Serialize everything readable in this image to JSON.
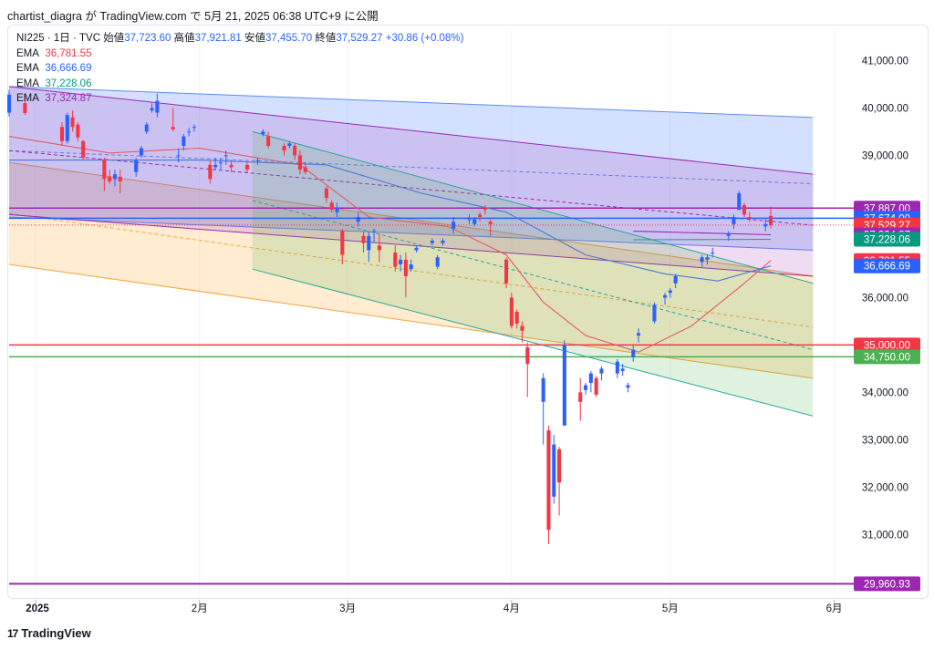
{
  "header": {
    "text": "chartist_diagra が TradingView.com で 5月 21, 2025 06:38 UTC+9 に公開"
  },
  "legend": {
    "symbol": "NI225 · 1日 · TVC",
    "open_label": "始値",
    "open": "37,723.60",
    "high_label": "高値",
    "high": "37,921.81",
    "low_label": "安値",
    "low": "37,455.70",
    "close_label": "終値",
    "close": "37,529.27",
    "change": "+30.86 (+0.08%)",
    "emas": [
      {
        "label": "EMA",
        "value": "36,781.55",
        "color": "#f23645"
      },
      {
        "label": "EMA",
        "value": "36,666.69",
        "color": "#2962ff"
      },
      {
        "label": "EMA",
        "value": "37,228.06",
        "color": "#089981"
      },
      {
        "label": "EMA",
        "value": "37,324.87",
        "color": "#9c27b0"
      }
    ]
  },
  "footer": {
    "brand": "TradingView",
    "logo_mark": "17"
  },
  "chart_data": {
    "type": "candlestick",
    "x_range": [
      "2024-12-27",
      "2025-06-04"
    ],
    "y_range": [
      29700,
      41700
    ],
    "y_ticks": [
      "41,000.00",
      "40,000.00",
      "39,000.00",
      "36,000.00",
      "34,000.00",
      "33,000.00",
      "32,000.00",
      "31,000.00"
    ],
    "y_tick_values": [
      41000,
      40000,
      39000,
      36000,
      34000,
      33000,
      32000,
      31000
    ],
    "x_ticks": [
      {
        "date": "2025-01-01",
        "label": "2025",
        "bold": true
      },
      {
        "date": "2025-02-01",
        "label": "2月",
        "bold": false
      },
      {
        "date": "2025-03-01",
        "label": "3月",
        "bold": false
      },
      {
        "date": "2025-04-01",
        "label": "4月",
        "bold": false
      },
      {
        "date": "2025-05-01",
        "label": "5月",
        "bold": false
      },
      {
        "date": "2025-06-01",
        "label": "6月",
        "bold": false
      }
    ],
    "price_labels": [
      {
        "value": 37887,
        "label": "37,887.00",
        "color": "#9c27b0"
      },
      {
        "value": 37674,
        "label": "37,674.00",
        "color": "#2962ff"
      },
      {
        "value": 37529.27,
        "label": "37,529.27",
        "color": "#f23645"
      },
      {
        "value": 37324.87,
        "label": "37,324.87",
        "color": "#9c27b0"
      },
      {
        "value": 37228.06,
        "label": "37,228.06",
        "color": "#089981"
      },
      {
        "value": 36781.55,
        "label": "36,781.55",
        "color": "#f23645"
      },
      {
        "value": 36666.69,
        "label": "36,666.69",
        "color": "#2962ff"
      },
      {
        "value": 35000,
        "label": "35,000.00",
        "color": "#f23645"
      },
      {
        "value": 34750,
        "label": "34,750.00",
        "color": "#4caf50"
      },
      {
        "value": 29960.93,
        "label": "29,960.93",
        "color": "#9c27b0"
      }
    ],
    "horizontal_lines": [
      {
        "value": 37887,
        "color": "#9c27b0",
        "width": 1.5
      },
      {
        "value": 37674,
        "color": "#2962ff",
        "width": 1.5
      },
      {
        "value": 37529.27,
        "color": "#f23645",
        "width": 1,
        "dash": "1,2"
      },
      {
        "value": 35000,
        "color": "#f23645",
        "width": 1.5
      },
      {
        "value": 34750,
        "color": "#4caf50",
        "width": 1.5
      },
      {
        "value": 29960.93,
        "color": "#9c27b0",
        "width": 2
      }
    ],
    "channels": [
      {
        "name": "orange",
        "fill": "rgba(255,152,0,0.18)",
        "stroke": "#f7a43a",
        "start": "2024-12-27",
        "end": "2025-05-28",
        "upper": [
          38850,
          36450
        ],
        "lower": [
          36700,
          34300
        ],
        "mid": [
          37775,
          35375
        ]
      },
      {
        "name": "blue",
        "fill": "rgba(41,98,255,0.2)",
        "stroke": "#5b8def",
        "start": "2024-12-27",
        "end": "2025-05-28",
        "upper": [
          40450,
          39800
        ],
        "lower": [
          37700,
          37000
        ],
        "mid": [
          39100,
          38400
        ]
      },
      {
        "name": "purple",
        "fill": "rgba(156,39,176,0.16)",
        "stroke": "#9c27b0",
        "start": "2024-12-27",
        "end": "2025-05-28",
        "upper": [
          40450,
          38600
        ],
        "lower": [
          37750,
          36450
        ],
        "mid": [
          39100,
          37525
        ]
      },
      {
        "name": "green",
        "fill": "rgba(76,175,80,0.18)",
        "stroke": "#26a69a",
        "start": "2025-02-11",
        "end": "2025-05-28",
        "upper": [
          39500,
          36300
        ],
        "lower": [
          36600,
          33500
        ],
        "mid": [
          38050,
          34900
        ]
      }
    ],
    "ema_series": [
      {
        "name": "EMA 36,781.55",
        "color": "#e35d6a",
        "points": [
          [
            "2024-12-27",
            39400
          ],
          [
            "2025-01-15",
            39050
          ],
          [
            "2025-02-01",
            39150
          ],
          [
            "2025-02-20",
            38800
          ],
          [
            "2025-03-05",
            37700
          ],
          [
            "2025-03-20",
            37500
          ],
          [
            "2025-03-31",
            36900
          ],
          [
            "2025-04-07",
            35900
          ],
          [
            "2025-04-15",
            35200
          ],
          [
            "2025-04-25",
            34850
          ],
          [
            "2025-05-05",
            35400
          ],
          [
            "2025-05-15",
            36300
          ],
          [
            "2025-05-20",
            36781.55
          ]
        ]
      },
      {
        "name": "EMA 36,666.69",
        "color": "#4a79d8",
        "points": [
          [
            "2024-12-27",
            38900
          ],
          [
            "2025-01-15",
            38900
          ],
          [
            "2025-02-01",
            38900
          ],
          [
            "2025-02-25",
            38800
          ],
          [
            "2025-03-15",
            38200
          ],
          [
            "2025-03-31",
            37800
          ],
          [
            "2025-04-15",
            36900
          ],
          [
            "2025-04-30",
            36500
          ],
          [
            "2025-05-10",
            36350
          ],
          [
            "2025-05-20",
            36666.69
          ]
        ]
      },
      {
        "name": "EMA 37,228.06",
        "color": "#2e9c8b",
        "points": [
          [
            "2025-04-24",
            37220
          ],
          [
            "2025-05-20",
            37228.06
          ]
        ]
      },
      {
        "name": "EMA 37,324.87",
        "color": "#9c27b0",
        "points": [
          [
            "2025-04-24",
            37400
          ],
          [
            "2025-05-20",
            37324.87
          ]
        ]
      }
    ],
    "candles": [
      [
        "2024-12-27",
        39900,
        40380,
        39820,
        40280
      ],
      [
        "2024-12-30",
        40100,
        40300,
        39850,
        39890
      ],
      [
        "2025-01-06",
        39600,
        39700,
        39200,
        39300
      ],
      [
        "2025-01-07",
        39300,
        39900,
        39250,
        39850
      ],
      [
        "2025-01-08",
        39800,
        39950,
        39500,
        39600
      ],
      [
        "2025-01-09",
        39650,
        39700,
        39300,
        39380
      ],
      [
        "2025-01-10",
        39300,
        39320,
        38900,
        38950
      ],
      [
        "2025-01-14",
        38900,
        38950,
        38250,
        38500
      ],
      [
        "2025-01-15",
        38550,
        38700,
        38400,
        38450
      ],
      [
        "2025-01-16",
        38500,
        38700,
        38350,
        38600
      ],
      [
        "2025-01-17",
        38550,
        38700,
        38200,
        38450
      ],
      [
        "2025-01-20",
        38650,
        38950,
        38550,
        38900
      ],
      [
        "2025-01-21",
        39000,
        39200,
        38950,
        39150
      ],
      [
        "2025-01-22",
        39500,
        39700,
        39450,
        39650
      ],
      [
        "2025-01-23",
        39950,
        40100,
        39900,
        40000
      ],
      [
        "2025-01-24",
        39900,
        40300,
        39800,
        40150
      ],
      [
        "2025-01-27",
        39600,
        40000,
        39500,
        39550
      ],
      [
        "2025-01-28",
        39000,
        39150,
        38850,
        39000
      ],
      [
        "2025-01-29",
        39200,
        39450,
        39100,
        39400
      ],
      [
        "2025-01-30",
        39500,
        39580,
        39400,
        39500
      ],
      [
        "2025-01-31",
        39600,
        39650,
        39500,
        39600
      ],
      [
        "2025-02-03",
        38800,
        38900,
        38400,
        38500
      ],
      [
        "2025-02-04",
        38750,
        38950,
        38700,
        38800
      ],
      [
        "2025-02-05",
        38850,
        38950,
        38700,
        38850
      ],
      [
        "2025-02-06",
        39000,
        39100,
        38800,
        39000
      ],
      [
        "2025-02-07",
        38800,
        38900,
        38650,
        38750
      ],
      [
        "2025-02-10",
        38800,
        38850,
        38650,
        38700
      ],
      [
        "2025-02-12",
        38900,
        38950,
        38800,
        38900
      ],
      [
        "2025-02-13",
        39450,
        39550,
        39400,
        39500
      ],
      [
        "2025-02-14",
        39400,
        39500,
        39150,
        39200
      ],
      [
        "2025-02-17",
        39200,
        39250,
        39000,
        39100
      ],
      [
        "2025-02-18",
        39200,
        39300,
        39150,
        39250
      ],
      [
        "2025-02-19",
        39200,
        39250,
        38900,
        39000
      ],
      [
        "2025-02-20",
        39000,
        39100,
        38600,
        38700
      ],
      [
        "2025-02-21",
        38750,
        38850,
        38600,
        38650
      ],
      [
        "2025-02-25",
        38300,
        38350,
        38000,
        38100
      ],
      [
        "2025-02-26",
        38000,
        38050,
        37800,
        37850
      ],
      [
        "2025-02-27",
        37800,
        38000,
        37700,
        37900
      ],
      [
        "2025-02-28",
        37400,
        37450,
        36700,
        36900
      ],
      [
        "2025-03-03",
        37600,
        37800,
        37500,
        37700
      ],
      [
        "2025-03-04",
        37300,
        37400,
        36950,
        37150
      ],
      [
        "2025-03-05",
        37000,
        37400,
        36750,
        37300
      ],
      [
        "2025-03-06",
        37400,
        37450,
        37150,
        37400
      ],
      [
        "2025-03-07",
        37100,
        37350,
        36750,
        37000
      ],
      [
        "2025-03-10",
        36950,
        37100,
        36550,
        36650
      ],
      [
        "2025-03-11",
        36700,
        36900,
        36550,
        36800
      ],
      [
        "2025-03-12",
        36800,
        36950,
        36000,
        36450
      ],
      [
        "2025-03-13",
        36600,
        36800,
        36550,
        36700
      ],
      [
        "2025-03-14",
        37000,
        37100,
        36950,
        37050
      ],
      [
        "2025-03-17",
        37150,
        37250,
        37100,
        37200
      ],
      [
        "2025-03-18",
        36650,
        36900,
        36600,
        36850
      ],
      [
        "2025-03-19",
        37150,
        37250,
        37100,
        37200
      ],
      [
        "2025-03-21",
        37450,
        37700,
        37350,
        37600
      ],
      [
        "2025-03-24",
        37650,
        37750,
        37550,
        37650
      ],
      [
        "2025-03-25",
        37550,
        37700,
        37500,
        37650
      ],
      [
        "2025-03-26",
        37750,
        37800,
        37600,
        37700
      ],
      [
        "2025-03-27",
        37900,
        37950,
        37750,
        37850
      ],
      [
        "2025-03-28",
        37600,
        37650,
        37300,
        37550
      ],
      [
        "2025-03-31",
        36800,
        36850,
        36200,
        36300
      ],
      [
        "2025-04-01",
        36000,
        36100,
        35350,
        35400
      ],
      [
        "2025-04-02",
        35700,
        35750,
        35350,
        35450
      ],
      [
        "2025-04-03",
        35400,
        35500,
        35050,
        35300
      ],
      [
        "2025-04-04",
        34950,
        35050,
        33900,
        34600
      ],
      [
        "2025-04-07",
        33800,
        34400,
        32900,
        34300
      ],
      [
        "2025-04-08",
        33200,
        33300,
        30800,
        31100
      ],
      [
        "2025-04-09",
        31800,
        33100,
        31650,
        32900
      ],
      [
        "2025-04-10",
        32800,
        32850,
        31400,
        32100
      ],
      [
        "2025-04-11",
        33300,
        35100,
        33300,
        35000
      ],
      [
        "2025-04-14",
        34000,
        34300,
        33400,
        33800
      ],
      [
        "2025-04-15",
        34050,
        34200,
        33950,
        34150
      ],
      [
        "2025-04-16",
        34200,
        34450,
        34000,
        34400
      ],
      [
        "2025-04-17",
        34300,
        34350,
        33900,
        33950
      ],
      [
        "2025-04-18",
        34400,
        34550,
        34250,
        34500
      ],
      [
        "2025-04-21",
        34400,
        34700,
        34300,
        34650
      ],
      [
        "2025-04-22",
        34450,
        34600,
        34350,
        34500
      ],
      [
        "2025-04-23",
        34100,
        34200,
        34000,
        34150
      ],
      [
        "2025-04-24",
        34750,
        35000,
        34650,
        34900
      ],
      [
        "2025-04-25",
        35200,
        35350,
        35050,
        35250
      ],
      [
        "2025-04-28",
        35500,
        35900,
        35450,
        35850
      ],
      [
        "2025-04-30",
        36000,
        36100,
        35850,
        36050
      ],
      [
        "2025-05-01",
        36100,
        36200,
        36000,
        36150
      ],
      [
        "2025-05-02",
        36300,
        36500,
        36200,
        36450
      ],
      [
        "2025-05-07",
        36750,
        36900,
        36650,
        36850
      ],
      [
        "2025-05-08",
        36800,
        36900,
        36700,
        36850
      ],
      [
        "2025-05-09",
        36950,
        37050,
        36850,
        36950
      ],
      [
        "2025-05-12",
        37300,
        37400,
        37200,
        37350
      ],
      [
        "2025-05-13",
        37550,
        37750,
        37450,
        37700
      ],
      [
        "2025-05-14",
        37850,
        38250,
        37850,
        38200
      ],
      [
        "2025-05-15",
        37950,
        38000,
        37700,
        37750
      ],
      [
        "2025-05-16",
        37700,
        37800,
        37600,
        37650
      ],
      [
        "2025-05-19",
        37500,
        37650,
        37400,
        37550
      ],
      [
        "2025-05-20",
        37723.6,
        37921.81,
        37455.7,
        37529.27
      ]
    ]
  }
}
